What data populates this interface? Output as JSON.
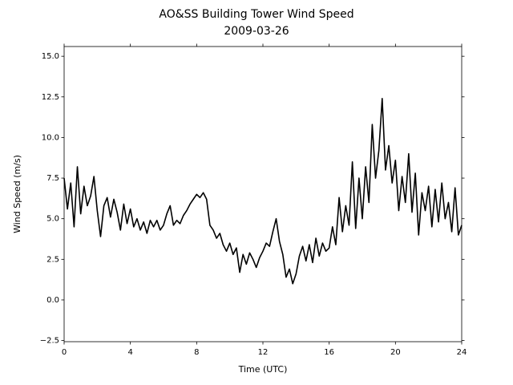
{
  "chart_data": {
    "type": "line",
    "title": "AO&SS Building Tower Wind Speed",
    "subtitle": "2009-03-26",
    "x_label": "Time (UTC)",
    "y_label": "Wind Speed (m/s)",
    "color": "#000000",
    "xlim": [
      0,
      24
    ],
    "xticks": [
      0,
      4,
      8,
      12,
      16,
      20,
      24
    ],
    "ylim": [
      -2.57,
      15.6
    ],
    "yticks": [
      {
        "value": -2.5,
        "label": "−2.5"
      },
      {
        "value": 0,
        "label": "0.0"
      },
      2.5,
      {
        "value": 5,
        "label": "5.0"
      },
      7.5,
      {
        "value": 10,
        "label": "10.0"
      },
      12.5,
      {
        "value": 15,
        "label": "15.0"
      }
    ],
    "x": [
      0,
      0.2,
      0.4,
      0.6,
      0.8,
      1,
      1.2,
      1.4,
      1.6,
      1.8,
      2,
      2.2,
      2.4,
      2.6,
      2.8,
      3,
      3.2,
      3.4,
      3.6,
      3.8,
      4,
      4.2,
      4.4,
      4.6,
      4.8,
      5,
      5.2,
      5.4,
      5.6,
      5.8,
      6,
      6.2,
      6.4,
      6.6,
      6.8,
      7,
      7.2,
      7.4,
      7.6,
      7.8,
      8,
      8.2,
      8.4,
      8.6,
      8.8,
      9,
      9.2,
      9.4,
      9.6,
      9.8,
      10,
      10.2,
      10.4,
      10.6,
      10.8,
      11,
      11.2,
      11.4,
      11.6,
      11.8,
      12,
      12.2,
      12.4,
      12.6,
      12.8,
      13,
      13.2,
      13.4,
      13.6,
      13.8,
      14,
      14.2,
      14.4,
      14.6,
      14.8,
      15,
      15.2,
      15.4,
      15.6,
      15.8,
      16,
      16.2,
      16.4,
      16.6,
      16.8,
      17,
      17.2,
      17.4,
      17.6,
      17.8,
      18,
      18.2,
      18.4,
      18.6,
      18.8,
      19,
      19.2,
      19.4,
      19.6,
      19.8,
      20,
      20.2,
      20.4,
      20.6,
      20.8,
      21,
      21.2,
      21.4,
      21.6,
      21.8,
      22,
      22.2,
      22.4,
      22.6,
      22.8,
      23,
      23.2,
      23.4,
      23.6,
      23.8,
      24
    ],
    "values": [
      7.5,
      5.6,
      7.2,
      4.5,
      8.2,
      5.3,
      7.0,
      5.8,
      6.4,
      7.6,
      5.5,
      3.9,
      5.8,
      6.3,
      5.1,
      6.2,
      5.4,
      4.3,
      5.9,
      4.7,
      5.6,
      4.5,
      5.0,
      4.3,
      4.8,
      4.1,
      4.9,
      4.5,
      4.9,
      4.3,
      4.6,
      5.3,
      5.8,
      4.6,
      4.9,
      4.7,
      5.2,
      5.5,
      5.9,
      6.2,
      6.5,
      6.3,
      6.6,
      6.2,
      4.6,
      4.3,
      3.8,
      4.1,
      3.4,
      3.0,
      3.5,
      2.8,
      3.2,
      1.7,
      2.8,
      2.2,
      2.9,
      2.5,
      2.0,
      2.6,
      3.0,
      3.5,
      3.3,
      4.2,
      5.0,
      3.6,
      2.8,
      1.4,
      1.9,
      1.0,
      1.6,
      2.7,
      3.3,
      2.4,
      3.4,
      2.3,
      3.8,
      2.7,
      3.5,
      3.0,
      3.2,
      4.5,
      3.4,
      6.3,
      4.2,
      5.8,
      4.6,
      8.5,
      4.4,
      7.5,
      5.0,
      8.2,
      6.0,
      10.8,
      7.5,
      9.2,
      12.4,
      8.0,
      9.5,
      7.2,
      8.6,
      5.5,
      7.6,
      6.0,
      9.0,
      5.4,
      7.8,
      4.0,
      6.6,
      5.5,
      7.0,
      4.5,
      6.8,
      4.8,
      7.2,
      5.0,
      6.0,
      4.2,
      6.9,
      4.0,
      4.6
    ]
  }
}
